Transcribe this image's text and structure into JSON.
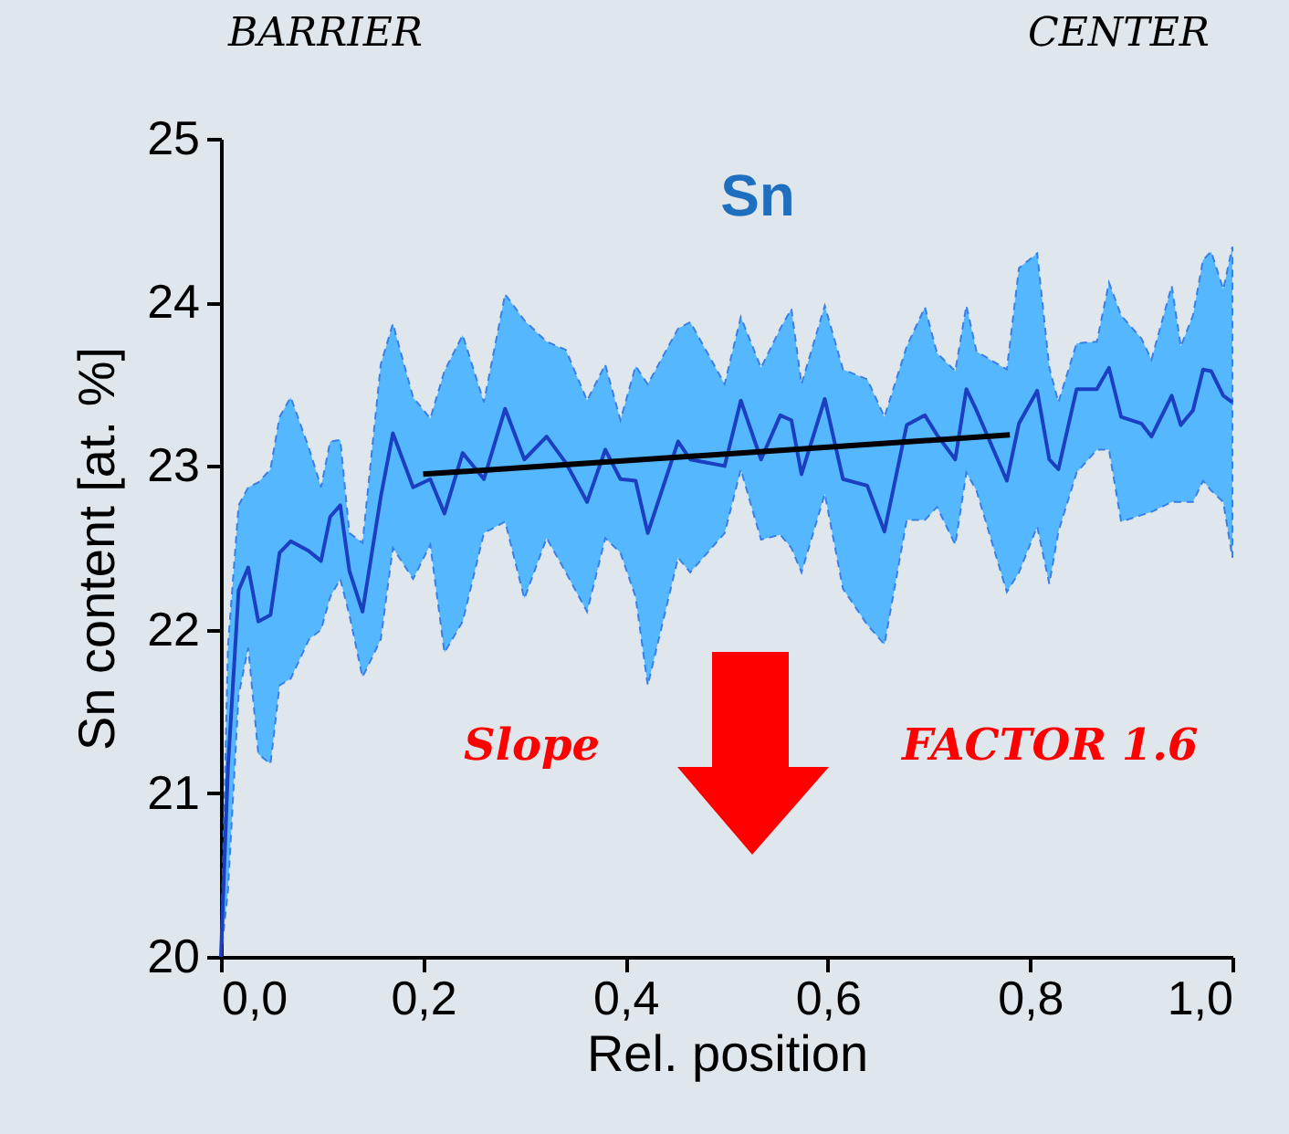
{
  "chart_data": {
    "type": "line",
    "title": "Sn",
    "xlabel": "Rel. position",
    "ylabel": "Sn content [at. %]",
    "xlim": [
      0,
      1
    ],
    "ylim": [
      20,
      25
    ],
    "xticks": [
      {
        "value": 0,
        "label": "0,0"
      },
      {
        "value": 0.2,
        "label": "0,2"
      },
      {
        "value": 0.4,
        "label": "0,4"
      },
      {
        "value": 0.6,
        "label": "0,6"
      },
      {
        "value": 0.8,
        "label": "0,8"
      },
      {
        "value": 1,
        "label": "1,0"
      }
    ],
    "yticks": [
      20,
      21,
      22,
      23,
      24,
      25
    ],
    "annotations": [
      "BARRIER",
      "CENTER",
      "Slope",
      "FACTOR 1.6"
    ],
    "series": [
      {
        "color": "#1c3fc2",
        "x": [
          0,
          0.007,
          0.0175,
          0.027,
          0.037,
          0.049,
          0.058,
          0.069,
          0.087,
          0.099,
          0.108,
          0.118,
          0.127,
          0.14,
          0.158,
          0.17,
          0.19,
          0.207,
          0.221,
          0.239,
          0.26,
          0.281,
          0.3,
          0.322,
          0.341,
          0.362,
          0.38,
          0.395,
          0.41,
          0.422,
          0.452,
          0.464,
          0.498,
          0.514,
          0.534,
          0.553,
          0.564,
          0.574,
          0.597,
          0.615,
          0.639,
          0.656,
          0.678,
          0.696,
          0.708,
          0.726,
          0.737,
          0.747,
          0.777,
          0.789,
          0.807,
          0.819,
          0.828,
          0.846,
          0.866,
          0.878,
          0.89,
          0.91,
          0.92,
          0.94,
          0.949,
          0.961,
          0.971,
          0.979,
          0.991,
          1.0
        ],
        "values": [
          20.0,
          21.16,
          22.24,
          22.38,
          22.05,
          22.09,
          22.47,
          22.54,
          22.48,
          22.42,
          22.69,
          22.76,
          22.36,
          22.11,
          22.81,
          23.2,
          22.87,
          22.92,
          22.71,
          23.08,
          22.92,
          23.35,
          23.04,
          23.18,
          23.02,
          22.78,
          23.1,
          22.92,
          22.91,
          22.59,
          23.15,
          23.04,
          23.0,
          23.4,
          23.04,
          23.31,
          23.28,
          22.95,
          23.41,
          22.92,
          22.88,
          22.6,
          23.25,
          23.31,
          23.19,
          23.04,
          23.47,
          23.34,
          22.91,
          23.26,
          23.46,
          23.04,
          22.98,
          23.47,
          23.47,
          23.6,
          23.3,
          23.26,
          23.18,
          23.43,
          23.25,
          23.34,
          23.59,
          23.58,
          23.43,
          23.39
        ],
        "lower": [
          20.0,
          20.41,
          21.6,
          21.89,
          21.24,
          21.18,
          21.66,
          21.7,
          21.94,
          22.0,
          22.2,
          22.31,
          22.09,
          21.71,
          21.94,
          22.5,
          22.31,
          22.52,
          21.86,
          22.05,
          22.59,
          22.66,
          22.19,
          22.56,
          22.35,
          22.11,
          22.56,
          22.47,
          22.2,
          21.66,
          22.44,
          22.35,
          22.59,
          22.98,
          22.55,
          22.58,
          22.5,
          22.35,
          22.83,
          22.25,
          22.03,
          21.91,
          22.67,
          22.67,
          22.75,
          22.52,
          22.96,
          22.85,
          22.23,
          22.35,
          22.63,
          22.28,
          22.6,
          22.96,
          23.1,
          23.1,
          22.66,
          22.7,
          22.72,
          22.78,
          22.78,
          22.78,
          22.91,
          22.85,
          22.78,
          22.44
        ],
        "upper": [
          20.0,
          21.9,
          22.76,
          22.87,
          22.9,
          22.98,
          23.3,
          23.42,
          23.11,
          22.87,
          23.15,
          23.16,
          22.59,
          22.53,
          23.62,
          23.87,
          23.42,
          23.29,
          23.58,
          23.8,
          23.39,
          24.05,
          23.89,
          23.76,
          23.71,
          23.4,
          23.62,
          23.28,
          23.61,
          23.5,
          23.84,
          23.88,
          23.5,
          23.91,
          23.6,
          23.84,
          23.96,
          23.5,
          23.98,
          23.59,
          23.53,
          23.3,
          23.73,
          23.97,
          23.69,
          23.58,
          23.98,
          23.7,
          23.59,
          24.21,
          24.3,
          23.6,
          23.39,
          23.75,
          23.76,
          24.12,
          23.92,
          23.78,
          23.65,
          24.1,
          23.73,
          23.92,
          24.26,
          24.31,
          24.08,
          24.34
        ]
      },
      {
        "type": "line",
        "color": "#000000",
        "x": [
          0.2,
          0.78
        ],
        "values": [
          22.95,
          23.19
        ]
      }
    ]
  }
}
